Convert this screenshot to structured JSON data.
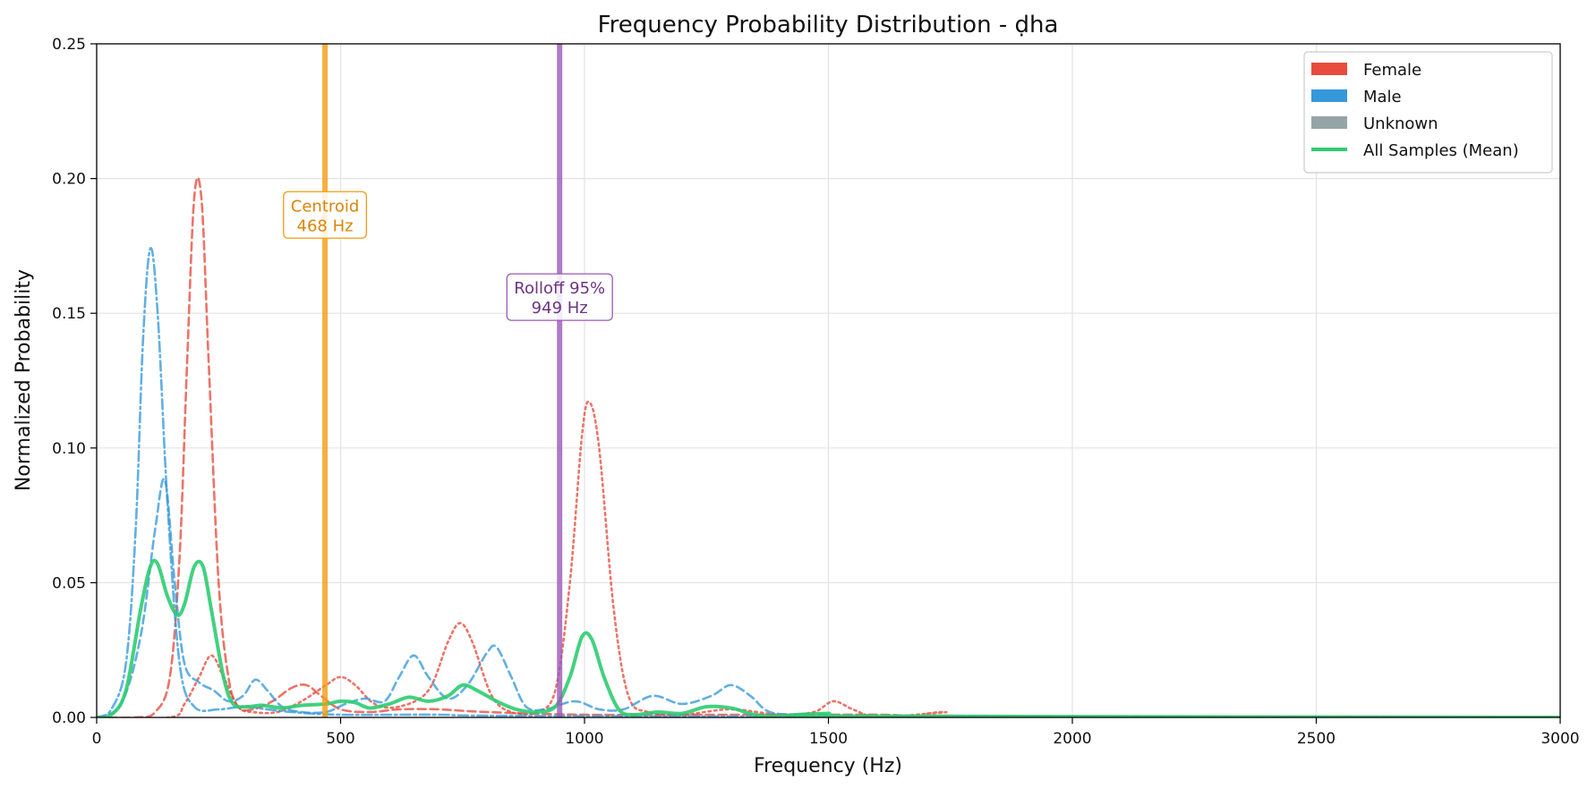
{
  "chart_data": {
    "type": "line",
    "title": "Frequency Probability Distribution - ḍha",
    "xlabel": "Frequency (Hz)",
    "ylabel": "Normalized Probability",
    "xlim": [
      0,
      3000
    ],
    "ylim": [
      0,
      0.25
    ],
    "xticks": [
      0,
      500,
      1000,
      1500,
      2000,
      2500,
      3000
    ],
    "yticks": [
      0.0,
      0.05,
      0.1,
      0.15,
      0.2,
      0.25
    ],
    "xtick_labels": [
      "0",
      "500",
      "1000",
      "1500",
      "2000",
      "2500",
      "3000"
    ],
    "ytick_labels": [
      "0.00",
      "0.05",
      "0.10",
      "0.15",
      "0.20",
      "0.25"
    ],
    "grid": true,
    "legend_position": "top-right",
    "legend": [
      {
        "label": "Female",
        "color": "#e74c3c",
        "kind": "patch"
      },
      {
        "label": "Male",
        "color": "#3498db",
        "kind": "patch"
      },
      {
        "label": "Unknown",
        "color": "#95a5a6",
        "kind": "patch"
      },
      {
        "label": "All Samples (Mean)",
        "color": "#2ecc71",
        "kind": "line"
      }
    ],
    "markers": [
      {
        "text1": "Centroid",
        "text2": "468 Hz",
        "x": 468,
        "label_y": 0.1865,
        "color": "#f39c12",
        "text_color": "#d9860a"
      },
      {
        "text1": "Rolloff 95%",
        "text2": "949 Hz",
        "x": 949,
        "label_y": 0.156,
        "color": "#9b59b6",
        "text_color": "#6c3483"
      }
    ],
    "series": [
      {
        "group": "Female",
        "color": "#e74c3c",
        "style": "dashed",
        "points": [
          [
            0,
            0
          ],
          [
            80,
            0
          ],
          [
            120,
            0.002
          ],
          [
            150,
            0.015
          ],
          [
            170,
            0.06
          ],
          [
            185,
            0.13
          ],
          [
            200,
            0.193
          ],
          [
            215,
            0.192
          ],
          [
            230,
            0.13
          ],
          [
            250,
            0.05
          ],
          [
            270,
            0.015
          ],
          [
            290,
            0.004
          ],
          [
            320,
            0.003
          ],
          [
            360,
            0.006
          ],
          [
            400,
            0.011
          ],
          [
            430,
            0.012
          ],
          [
            460,
            0.008
          ],
          [
            500,
            0.003
          ],
          [
            560,
            0.002
          ],
          [
            620,
            0.003
          ],
          [
            700,
            0.003
          ],
          [
            800,
            0.002
          ],
          [
            1000,
            0.001
          ],
          [
            1300,
            0.001
          ],
          [
            1600,
            0.001
          ],
          [
            1800,
            0.0005
          ],
          [
            3000,
            0
          ]
        ]
      },
      {
        "group": "Female",
        "color": "#e74c3c",
        "style": "dotted",
        "points": [
          [
            0,
            0
          ],
          [
            150,
            0
          ],
          [
            180,
            0.005
          ],
          [
            210,
            0.015
          ],
          [
            235,
            0.023
          ],
          [
            260,
            0.015
          ],
          [
            290,
            0.004
          ],
          [
            320,
            0.002
          ],
          [
            370,
            0.002
          ],
          [
            420,
            0.006
          ],
          [
            470,
            0.012
          ],
          [
            500,
            0.015
          ],
          [
            530,
            0.012
          ],
          [
            570,
            0.005
          ],
          [
            620,
            0.004
          ],
          [
            680,
            0.01
          ],
          [
            720,
            0.028
          ],
          [
            745,
            0.035
          ],
          [
            770,
            0.028
          ],
          [
            810,
            0.008
          ],
          [
            850,
            0.002
          ],
          [
            900,
            0.002
          ],
          [
            940,
            0.01
          ],
          [
            970,
            0.05
          ],
          [
            995,
            0.105
          ],
          [
            1010,
            0.117
          ],
          [
            1030,
            0.1
          ],
          [
            1060,
            0.04
          ],
          [
            1090,
            0.008
          ],
          [
            1130,
            0.002
          ],
          [
            1200,
            0.001
          ],
          [
            1300,
            0.003
          ],
          [
            1400,
            0.001
          ],
          [
            1470,
            0.002
          ],
          [
            1510,
            0.006
          ],
          [
            1550,
            0.003
          ],
          [
            1600,
            0
          ],
          [
            1680,
            0.001
          ],
          [
            1740,
            0.002
          ],
          [
            1800,
            0.0005
          ],
          [
            3000,
            0
          ]
        ]
      },
      {
        "group": "Male",
        "color": "#3498db",
        "style": "dashdot",
        "points": [
          [
            0,
            0
          ],
          [
            30,
            0.003
          ],
          [
            60,
            0.02
          ],
          [
            80,
            0.07
          ],
          [
            95,
            0.14
          ],
          [
            110,
            0.174
          ],
          [
            125,
            0.15
          ],
          [
            145,
            0.08
          ],
          [
            170,
            0.02
          ],
          [
            200,
            0.004
          ],
          [
            250,
            0.003
          ],
          [
            300,
            0.004
          ],
          [
            350,
            0.003
          ],
          [
            400,
            0.002
          ],
          [
            500,
            0.001
          ],
          [
            700,
            0.001
          ],
          [
            1000,
            0.0005
          ],
          [
            3000,
            0
          ]
        ]
      },
      {
        "group": "Male",
        "color": "#3498db",
        "style": "dashed",
        "points": [
          [
            0,
            0
          ],
          [
            50,
            0.005
          ],
          [
            90,
            0.03
          ],
          [
            120,
            0.07
          ],
          [
            140,
            0.088
          ],
          [
            160,
            0.05
          ],
          [
            180,
            0.02
          ],
          [
            210,
            0.013
          ],
          [
            240,
            0.01
          ],
          [
            270,
            0.006
          ],
          [
            300,
            0.008
          ],
          [
            325,
            0.014
          ],
          [
            350,
            0.01
          ],
          [
            380,
            0.004
          ],
          [
            420,
            0.002
          ],
          [
            470,
            0.002
          ],
          [
            510,
            0.005
          ],
          [
            550,
            0.007
          ],
          [
            590,
            0.006
          ],
          [
            620,
            0.015
          ],
          [
            650,
            0.023
          ],
          [
            680,
            0.015
          ],
          [
            720,
            0.007
          ],
          [
            760,
            0.012
          ],
          [
            800,
            0.024
          ],
          [
            820,
            0.026
          ],
          [
            850,
            0.015
          ],
          [
            880,
            0.004
          ],
          [
            920,
            0.003
          ],
          [
            980,
            0.006
          ],
          [
            1030,
            0.003
          ],
          [
            1080,
            0.003
          ],
          [
            1140,
            0.008
          ],
          [
            1200,
            0.005
          ],
          [
            1260,
            0.008
          ],
          [
            1300,
            0.012
          ],
          [
            1340,
            0.008
          ],
          [
            1380,
            0.002
          ],
          [
            1450,
            0.001
          ],
          [
            1550,
            0
          ],
          [
            3000,
            0
          ]
        ]
      },
      {
        "group": "All Samples (Mean)",
        "color": "#2ecc71",
        "style": "solid",
        "points": [
          [
            0,
            0
          ],
          [
            30,
            0.001
          ],
          [
            60,
            0.01
          ],
          [
            90,
            0.04
          ],
          [
            110,
            0.056
          ],
          [
            125,
            0.057
          ],
          [
            145,
            0.045
          ],
          [
            165,
            0.038
          ],
          [
            180,
            0.042
          ],
          [
            200,
            0.056
          ],
          [
            218,
            0.056
          ],
          [
            235,
            0.04
          ],
          [
            260,
            0.015
          ],
          [
            280,
            0.005
          ],
          [
            310,
            0.004
          ],
          [
            340,
            0.0045
          ],
          [
            380,
            0.0035
          ],
          [
            420,
            0.0045
          ],
          [
            470,
            0.005
          ],
          [
            500,
            0.006
          ],
          [
            530,
            0.0055
          ],
          [
            560,
            0.0035
          ],
          [
            600,
            0.005
          ],
          [
            640,
            0.0075
          ],
          [
            680,
            0.006
          ],
          [
            720,
            0.008
          ],
          [
            750,
            0.012
          ],
          [
            780,
            0.01
          ],
          [
            820,
            0.006
          ],
          [
            860,
            0.003
          ],
          [
            900,
            0.002
          ],
          [
            940,
            0.004
          ],
          [
            970,
            0.015
          ],
          [
            995,
            0.03
          ],
          [
            1015,
            0.029
          ],
          [
            1040,
            0.015
          ],
          [
            1070,
            0.003
          ],
          [
            1100,
            0.001
          ],
          [
            1150,
            0.002
          ],
          [
            1200,
            0.0015
          ],
          [
            1250,
            0.004
          ],
          [
            1300,
            0.0035
          ],
          [
            1350,
            0.001
          ],
          [
            1400,
            0.0005
          ],
          [
            1500,
            0.0015
          ],
          [
            1550,
            0.0005
          ],
          [
            3000,
            0
          ]
        ]
      }
    ]
  }
}
